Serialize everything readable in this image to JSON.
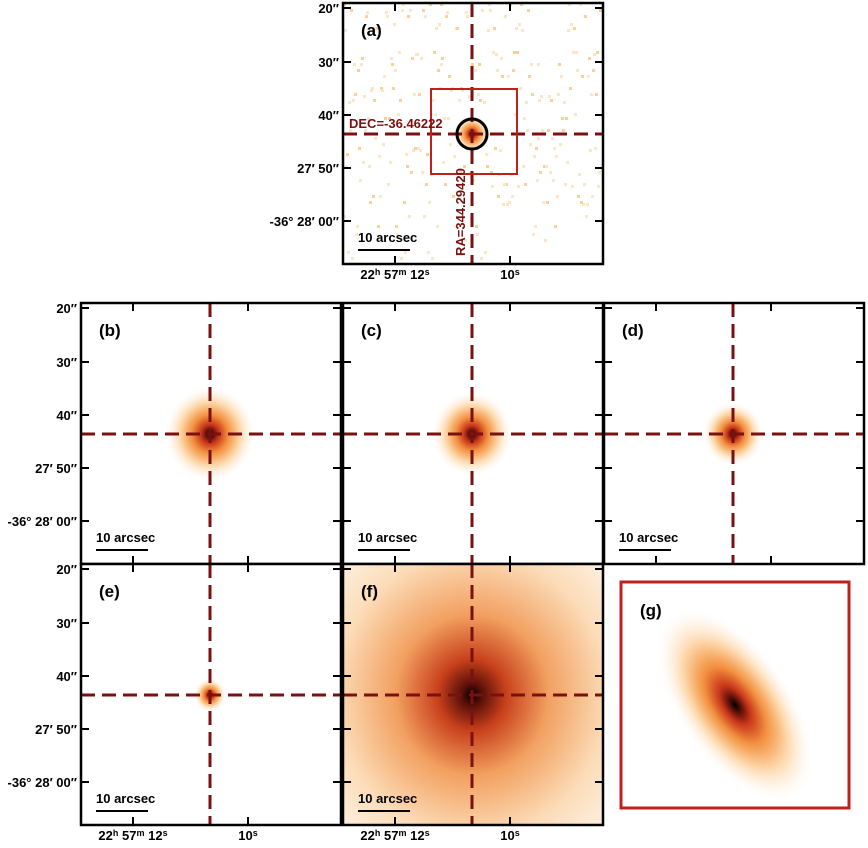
{
  "figure": {
    "panels": [
      {
        "label": "(a)"
      },
      {
        "label": "(b)"
      },
      {
        "label": "(c)"
      },
      {
        "label": "(d)"
      },
      {
        "label": "(e)"
      },
      {
        "label": "(f)"
      },
      {
        "label": "(g)"
      }
    ],
    "y_ticks": [
      "20″",
      "30″",
      "40″",
      "27′ 50″",
      "-36° 28′ 00″"
    ],
    "x_ticks": [
      {
        "parts": [
          "22",
          "h",
          " 57",
          "m",
          " 12",
          "s"
        ]
      },
      {
        "parts": [
          "10",
          "s"
        ]
      }
    ],
    "scale_bar": "10 arcsec",
    "dec_label": "DEC=-36.46222",
    "ra_label": "RA=344.29420"
  }
}
